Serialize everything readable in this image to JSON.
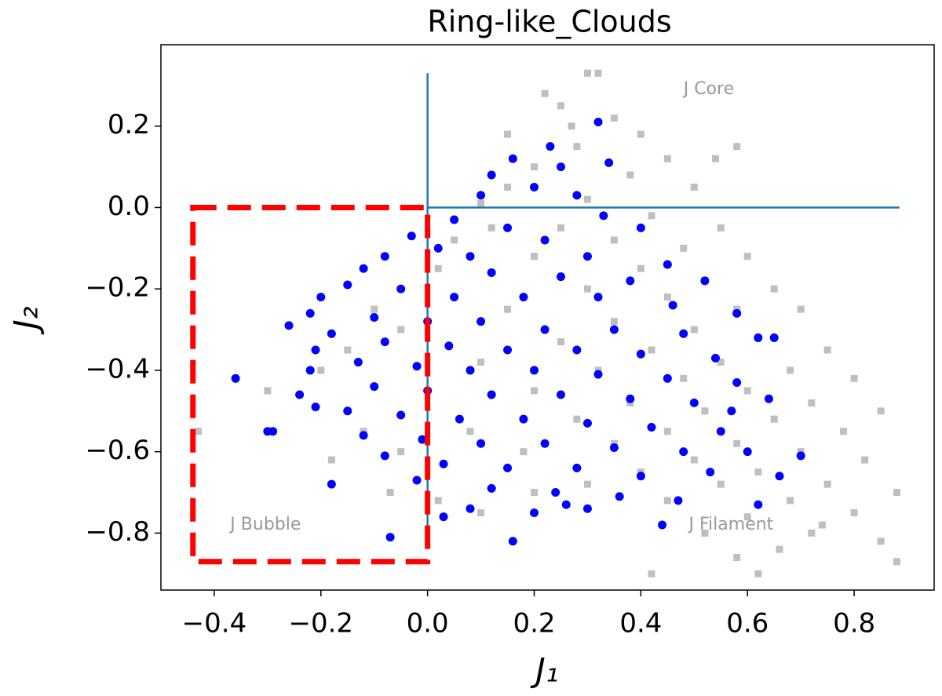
{
  "chart_data": {
    "type": "scatter",
    "title": "Ring-like_Clouds",
    "x_label": "J₁",
    "y_label": "J₂",
    "xlim": [
      -0.5,
      0.95
    ],
    "ylim": [
      -0.94,
      0.4
    ],
    "xticks": [
      {
        "value": -0.4,
        "label": "−0.4"
      },
      {
        "value": -0.2,
        "label": "−0.2"
      },
      {
        "value": 0.0,
        "label": "0.0"
      },
      0.2,
      0.4,
      0.6,
      0.8
    ],
    "yticks": [
      0.2,
      {
        "value": 0.0,
        "label": "0.0"
      },
      {
        "value": -0.2,
        "label": "−0.2"
      },
      {
        "value": -0.4,
        "label": "−0.4"
      },
      {
        "value": -0.6,
        "label": "−0.6"
      },
      {
        "value": -0.8,
        "label": "−0.8"
      }
    ],
    "grid": false,
    "series": [
      {
        "color": "#a9a9a9",
        "marker": "square",
        "x": [
          0.3,
          0.32,
          0.25,
          0.35,
          0.4,
          0.28,
          0.45,
          0.2,
          0.38,
          0.5,
          0.15,
          0.3,
          0.42,
          0.55,
          0.1,
          0.25,
          0.35,
          0.48,
          0.6,
          0.05,
          0.2,
          0.4,
          0.52,
          0.65,
          0.3,
          0.45,
          0.58,
          0.7,
          0.15,
          0.35,
          0.5,
          0.62,
          0.75,
          0.25,
          0.42,
          0.55,
          0.68,
          0.8,
          0.1,
          0.32,
          0.48,
          0.6,
          0.72,
          0.85,
          0.2,
          0.38,
          0.52,
          0.65,
          0.78,
          0.28,
          0.45,
          0.58,
          0.7,
          0.82,
          0.35,
          0.5,
          0.62,
          0.75,
          0.88,
          0.4,
          0.55,
          0.68,
          0.8,
          0.45,
          0.6,
          0.72,
          0.85,
          0.52,
          0.66,
          0.58,
          0.88,
          0.74,
          -0.05,
          -0.1,
          -0.15,
          -0.2,
          -0.3,
          -0.43,
          -0.12,
          -0.05,
          -0.18,
          -0.07,
          0.02,
          0.1,
          0.2,
          0.3,
          0.42,
          0.62,
          0.54,
          0.58,
          0.15,
          0.22,
          0.27,
          0.12,
          0.02,
          0.08,
          0.18
        ],
        "y": [
          0.33,
          0.33,
          0.25,
          0.22,
          0.18,
          0.15,
          0.12,
          0.1,
          0.08,
          0.05,
          0.05,
          0.02,
          -0.02,
          -0.05,
          0.01,
          -0.05,
          -0.08,
          -0.1,
          -0.12,
          -0.08,
          -0.12,
          -0.15,
          -0.18,
          -0.2,
          -0.2,
          -0.22,
          -0.25,
          -0.25,
          -0.25,
          -0.28,
          -0.3,
          -0.32,
          -0.35,
          -0.33,
          -0.35,
          -0.38,
          -0.4,
          -0.42,
          -0.38,
          -0.4,
          -0.42,
          -0.45,
          -0.48,
          -0.5,
          -0.45,
          -0.48,
          -0.5,
          -0.52,
          -0.55,
          -0.52,
          -0.55,
          -0.58,
          -0.6,
          -0.62,
          -0.58,
          -0.62,
          -0.65,
          -0.68,
          -0.7,
          -0.65,
          -0.68,
          -0.72,
          -0.75,
          -0.72,
          -0.76,
          -0.8,
          -0.82,
          -0.8,
          -0.84,
          -0.86,
          -0.87,
          -0.78,
          -0.3,
          -0.25,
          -0.35,
          -0.4,
          -0.45,
          -0.55,
          -0.55,
          -0.6,
          -0.62,
          -0.7,
          -0.72,
          -0.75,
          -0.7,
          -0.68,
          -0.9,
          -0.9,
          0.12,
          0.15,
          0.18,
          0.28,
          0.2,
          -0.05,
          -0.15,
          -0.55,
          -0.6
        ]
      },
      {
        "color": "#0000ff",
        "marker": "circle",
        "x": [
          0.32,
          0.23,
          0.34,
          0.25,
          0.16,
          0.12,
          0.2,
          0.28,
          0.1,
          0.33,
          0.05,
          0.15,
          0.4,
          0.22,
          -0.03,
          0.02,
          0.08,
          0.3,
          0.45,
          -0.08,
          -0.12,
          0.12,
          0.25,
          0.38,
          0.52,
          -0.15,
          -0.05,
          0.05,
          0.18,
          0.32,
          0.46,
          0.58,
          -0.2,
          -0.22,
          -0.1,
          0.0,
          0.1,
          0.22,
          0.35,
          0.48,
          0.62,
          0.65,
          -0.26,
          -0.18,
          -0.08,
          0.04,
          0.15,
          0.28,
          0.4,
          0.54,
          -0.21,
          -0.13,
          -0.02,
          0.08,
          0.2,
          0.32,
          0.45,
          0.58,
          -0.36,
          -0.22,
          -0.1,
          0.0,
          0.12,
          0.25,
          0.38,
          0.5,
          0.64,
          0.57,
          -0.24,
          -0.21,
          -0.15,
          -0.05,
          0.06,
          0.18,
          0.3,
          0.42,
          0.55,
          -0.3,
          -0.29,
          -0.12,
          -0.01,
          0.1,
          0.22,
          0.35,
          0.48,
          0.6,
          0.7,
          -0.08,
          0.03,
          0.15,
          0.28,
          0.4,
          0.53,
          0.66,
          -0.18,
          -0.02,
          0.12,
          0.24,
          0.36,
          0.47,
          0.08,
          0.2,
          0.3,
          0.62,
          0.44,
          -0.07,
          0.16,
          0.03,
          0.26
        ],
        "y": [
          0.21,
          0.15,
          0.11,
          0.1,
          0.12,
          0.08,
          0.05,
          0.03,
          0.03,
          -0.02,
          -0.03,
          -0.05,
          -0.05,
          -0.08,
          -0.07,
          -0.1,
          -0.12,
          -0.12,
          -0.14,
          -0.12,
          -0.15,
          -0.16,
          -0.17,
          -0.18,
          -0.18,
          -0.19,
          -0.2,
          -0.22,
          -0.22,
          -0.22,
          -0.24,
          -0.26,
          -0.22,
          -0.26,
          -0.27,
          -0.28,
          -0.28,
          -0.3,
          -0.3,
          -0.31,
          -0.32,
          -0.32,
          -0.29,
          -0.31,
          -0.33,
          -0.34,
          -0.35,
          -0.35,
          -0.36,
          -0.37,
          -0.35,
          -0.38,
          -0.39,
          -0.4,
          -0.4,
          -0.41,
          -0.42,
          -0.43,
          -0.42,
          -0.4,
          -0.44,
          -0.45,
          -0.46,
          -0.46,
          -0.47,
          -0.48,
          -0.47,
          -0.5,
          -0.46,
          -0.49,
          -0.5,
          -0.51,
          -0.52,
          -0.52,
          -0.53,
          -0.54,
          -0.55,
          -0.55,
          -0.55,
          -0.56,
          -0.57,
          -0.58,
          -0.58,
          -0.59,
          -0.6,
          -0.6,
          -0.61,
          -0.61,
          -0.63,
          -0.64,
          -0.64,
          -0.66,
          -0.65,
          -0.66,
          -0.68,
          -0.67,
          -0.69,
          -0.7,
          -0.71,
          -0.72,
          -0.74,
          -0.75,
          -0.74,
          -0.73,
          -0.78,
          -0.81,
          -0.82,
          -0.76,
          -0.73
        ]
      }
    ],
    "reference_lines": [
      {
        "color": "#1f77b4",
        "x": [
          0.0,
          0.0
        ],
        "y": [
          0.33,
          -0.82
        ]
      },
      {
        "color": "#1f77b4",
        "x": [
          0.0,
          0.885
        ],
        "y": [
          0.0,
          0.0
        ]
      }
    ],
    "box": {
      "color": "#ff0000",
      "x": [
        -0.44,
        0.0
      ],
      "y": [
        -0.87,
        0.0
      ]
    },
    "annotations": [
      {
        "text": "J Core",
        "x": 0.48,
        "y": 0.29
      },
      {
        "text": "J Bubble",
        "x": -0.37,
        "y": -0.78
      },
      {
        "text": "J Filament",
        "x": 0.49,
        "y": -0.78
      }
    ]
  }
}
